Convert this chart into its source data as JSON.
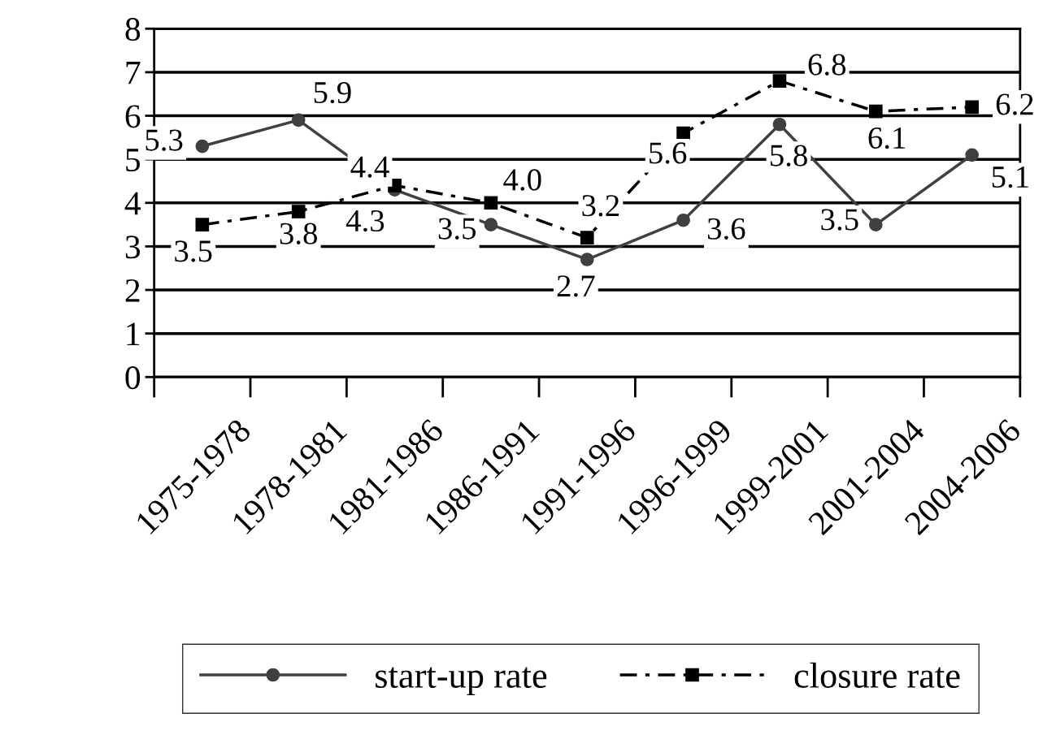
{
  "chart_data": {
    "type": "line",
    "categories": [
      "1975-1978",
      "1978-1981",
      "1981-1986",
      "1986-1991",
      "1991-1996",
      "1996-1999",
      "1999-2001",
      "2001-2004",
      "2004-2006"
    ],
    "series": [
      {
        "name": "start-up rate",
        "color": "#404040",
        "marker": "circle",
        "line_style": "solid",
        "values": [
          5.3,
          5.9,
          4.3,
          3.5,
          2.7,
          3.6,
          5.8,
          3.5,
          5.1
        ],
        "value_labels": [
          "5.3",
          "5.9",
          "4.3",
          "3.5",
          "2.7",
          "3.6",
          "5.8",
          "3.5",
          "5.1"
        ]
      },
      {
        "name": "closure rate",
        "color": "#000000",
        "marker": "square",
        "line_style": "dashed",
        "values": [
          3.5,
          3.8,
          4.4,
          4.0,
          3.2,
          5.6,
          6.8,
          6.1,
          6.2
        ],
        "value_labels": [
          "3.5",
          "3.8",
          "4.4",
          "4.0",
          "3.2",
          "5.6",
          "6.8",
          "6.1",
          "6.2"
        ]
      }
    ],
    "ylim": [
      0,
      8
    ],
    "yticks": [
      0,
      1,
      2,
      3,
      4,
      5,
      6,
      7,
      8
    ],
    "grid": "y",
    "legend": "bottom"
  }
}
